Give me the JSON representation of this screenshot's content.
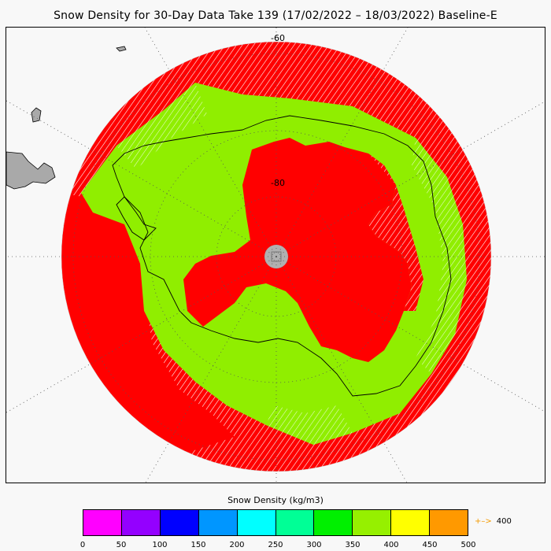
{
  "title": "Snow Density for 30-Day Data Take 139 (17/02/2022 – 18/03/2022) Baseline-E",
  "map": {
    "projection": "south-polar-stereographic",
    "latitude_labels": [
      "-60",
      "-80"
    ],
    "colors": {
      "background": "#f8f8f8",
      "land_grey": "#a9a9a9",
      "pole_hole": "#b0b0b0",
      "high_density": "#ff0000",
      "mid_density": "#90ee00",
      "coastline": "#000000"
    }
  },
  "colorbar": {
    "title": "Snow Density (kg/m3)",
    "colors": [
      "#ff00ff",
      "#9400ff",
      "#0000ff",
      "#0096ff",
      "#00ffff",
      "#00ff96",
      "#00f000",
      "#96f000",
      "#ffff00",
      "#ff9900"
    ],
    "ticks": [
      "0",
      "50",
      "100",
      "150",
      "200",
      "250",
      "300",
      "350",
      "400",
      "450",
      "500"
    ],
    "overflow_label": "400",
    "overflow_arrow": "+–>"
  }
}
